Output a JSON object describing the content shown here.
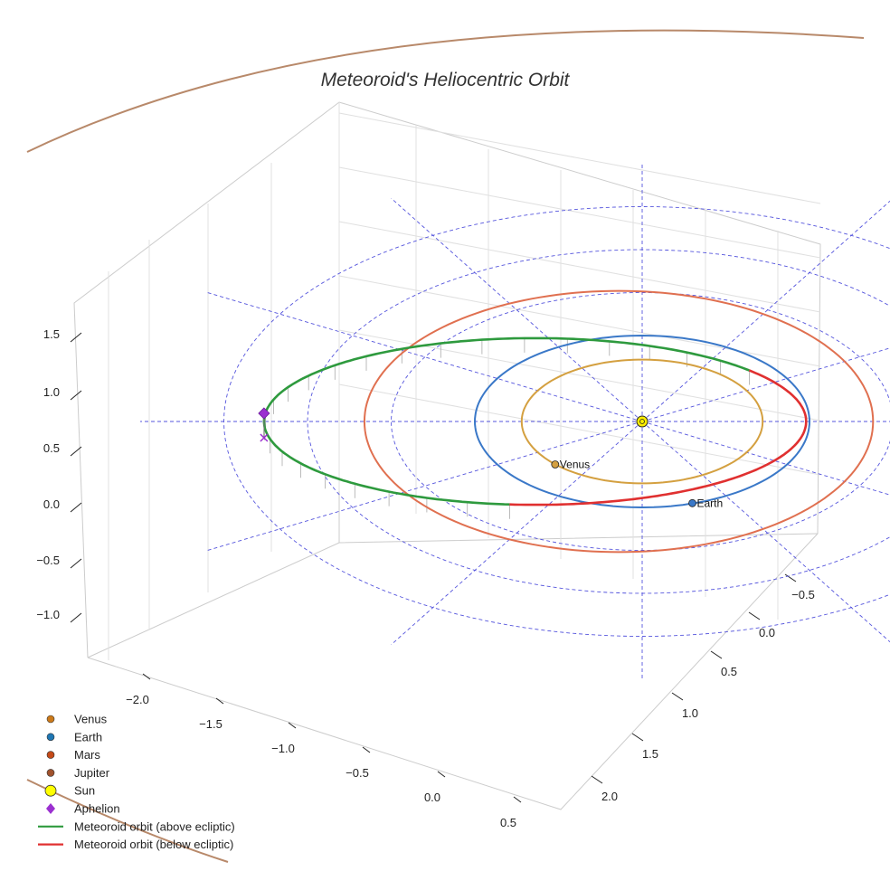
{
  "chart_data": {
    "type": "line3d",
    "title": "Meteoroid's Heliocentric Orbit",
    "xlabel": "",
    "ylabel": "",
    "zlabel": "",
    "xlim": [
      -2.4,
      0.7
    ],
    "ylim": [
      -0.8,
      2.3
    ],
    "zlim": [
      -1.4,
      1.8
    ],
    "x_ticks": [
      -2.0,
      -1.5,
      -1.0,
      -0.5,
      0.0,
      0.5
    ],
    "x_tick_labels": [
      "−2.0",
      "−1.5",
      "−1.0",
      "−0.5",
      "0.0",
      "0.5"
    ],
    "y_ticks": [
      -0.5,
      0.0,
      0.5,
      1.0,
      1.5,
      2.0
    ],
    "y_tick_labels": [
      "−0.5",
      "0.0",
      "0.5",
      "1.0",
      "1.5",
      "2.0"
    ],
    "z_ticks": [
      1.5,
      1.0,
      0.5,
      0.0,
      -0.5,
      -1.0
    ],
    "z_tick_labels": [
      "1.5",
      "1.0",
      "0.5",
      "0.0",
      "−0.5",
      "−1.0"
    ],
    "grid": true,
    "legend_position": "bottom-left",
    "series": [
      {
        "name": "Venus",
        "kind": "planet-orbit",
        "semi_major_au": 0.72,
        "color": "#d4a040",
        "label": "Venus",
        "position_au": [
          -0.52,
          0.5
        ]
      },
      {
        "name": "Earth",
        "kind": "planet-orbit",
        "semi_major_au": 1.0,
        "color": "#3a78c8",
        "label": "Earth",
        "position_au": [
          0.3,
          0.95
        ]
      },
      {
        "name": "Mars",
        "kind": "planet-orbit",
        "semi_major_au": 1.52,
        "color": "#e07050",
        "center_offset_au": -0.14
      },
      {
        "name": "Jupiter",
        "kind": "planet-orbit",
        "semi_major_au": 5.2,
        "color": "#b8896a"
      },
      {
        "name": "Sun",
        "kind": "point",
        "position_au": [
          0,
          0,
          0
        ],
        "color": "#ffee00"
      },
      {
        "name": "Aphelion",
        "kind": "point",
        "position_au": [
          -2.26,
          0,
          0.1
        ],
        "color": "#9b30d0"
      },
      {
        "name": "Meteoroid orbit (above ecliptic)",
        "kind": "meteoroid-arc",
        "color": "#2e9a3e"
      },
      {
        "name": "Meteoroid orbit (below ecliptic)",
        "kind": "meteoroid-arc",
        "color": "#e03030"
      }
    ],
    "ecliptic_rings_au": [
      1.5,
      2.0,
      2.5
    ],
    "meteoroid_orbit": {
      "perihelion_au": 0.98,
      "aphelion_au": 2.26,
      "inclination_deg": 2.5
    },
    "legend": [
      {
        "label": "Venus",
        "marker": "dot",
        "color": "#cc7a1a"
      },
      {
        "label": "Earth",
        "marker": "dot",
        "color": "#1f77b4"
      },
      {
        "label": "Mars",
        "marker": "dot",
        "color": "#c44a18"
      },
      {
        "label": "Jupiter",
        "marker": "dot",
        "color": "#a0522d"
      },
      {
        "label": "Sun",
        "marker": "sun",
        "color": "#ffff00"
      },
      {
        "label": "Aphelion",
        "marker": "diamond",
        "color": "#9b30d0"
      },
      {
        "label": "Meteoroid orbit (above ecliptic)",
        "marker": "line",
        "color": "#2e9a3e"
      },
      {
        "label": "Meteoroid orbit (below ecliptic)",
        "marker": "line",
        "color": "#e03030"
      }
    ]
  }
}
